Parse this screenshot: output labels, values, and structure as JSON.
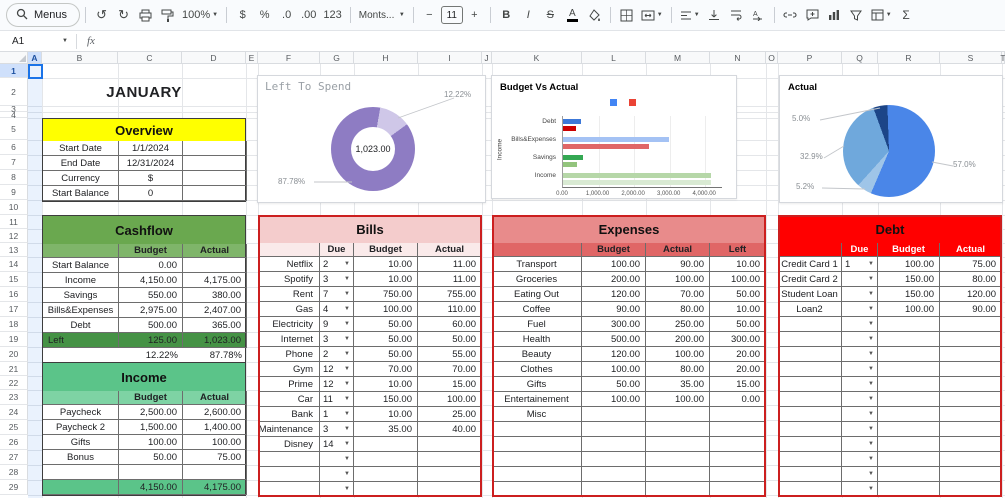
{
  "toolbar": {
    "menus": "Menus",
    "zoom": "100%",
    "currency": "$",
    "percent": "%",
    "decrease_decimal": ".0",
    "increase_decimal": ".00",
    "number_format": "123",
    "font": "Monts...",
    "font_size": "11",
    "minus": "−",
    "plus": "+",
    "bold": "B",
    "italic": "I",
    "strikethrough": "S",
    "text_color": "A",
    "functions": "Σ"
  },
  "formula_bar": {
    "name_box": "A1",
    "fx": "fx"
  },
  "grid": {
    "columns": [
      "A",
      "B",
      "C",
      "D",
      "E",
      "F",
      "G",
      "H",
      "I",
      "J",
      "K",
      "L",
      "M",
      "N",
      "O",
      "P",
      "Q",
      "R",
      "S",
      "T"
    ],
    "rows": [
      "1",
      "2",
      "3",
      "4",
      "5",
      "6",
      "7",
      "8",
      "9",
      "10",
      "11",
      "12",
      "13",
      "14",
      "15",
      "16",
      "17",
      "18",
      "19",
      "20",
      "21",
      "22",
      "23",
      "24",
      "25",
      "26",
      "27",
      "28",
      "29"
    ]
  },
  "colors": {
    "accent_blue": "#1a73e8",
    "overview_yellow": "#ffff00",
    "cashflow_green": "#6aa84f",
    "cashflow_left_green": "#459245",
    "income_green": "#5bc489",
    "bills_pink": "#f4cccc",
    "expenses_red": "#e88b8b",
    "debt_red": "#ff0000",
    "donut_purple": "#8e7cc3"
  },
  "month": {
    "title": "JANUARY"
  },
  "overview": {
    "title": "Overview",
    "rows": [
      {
        "label": "Start Date",
        "value": "1/1/2024",
        "blank": ""
      },
      {
        "label": "End Date",
        "value": "12/31/2024",
        "blank": ""
      },
      {
        "label": "Currency",
        "value": "$",
        "blank": ""
      },
      {
        "label": "Start Balance",
        "value": "0",
        "blank": ""
      }
    ]
  },
  "cashflow": {
    "title": "Cashflow",
    "headers": {
      "budget": "Budget",
      "actual": "Actual"
    },
    "rows": [
      {
        "label": "Start Balance",
        "budget": "0.00",
        "actual": ""
      },
      {
        "label": "Income",
        "budget": "4,150.00",
        "actual": "4,175.00"
      },
      {
        "label": "Savings",
        "budget": "550.00",
        "actual": "380.00"
      },
      {
        "label": "Bills&Expenses",
        "budget": "2,975.00",
        "actual": "2,407.00"
      },
      {
        "label": "Debt",
        "budget": "500.00",
        "actual": "365.00"
      }
    ],
    "left_row": {
      "label": "Left",
      "budget": "125.00",
      "actual": "1,023.00"
    },
    "pct_row": {
      "budget": "12.22%",
      "actual": "87.78%"
    }
  },
  "income": {
    "title": "Income",
    "headers": {
      "budget": "Budget",
      "actual": "Actual"
    },
    "rows": [
      {
        "label": "Paycheck",
        "budget": "2,500.00",
        "actual": "2,600.00"
      },
      {
        "label": "Paycheck 2",
        "budget": "1,500.00",
        "actual": "1,400.00"
      },
      {
        "label": "Gifts",
        "budget": "100.00",
        "actual": "100.00"
      },
      {
        "label": "Bonus",
        "budget": "50.00",
        "actual": "75.00"
      },
      {
        "label": "",
        "budget": "",
        "actual": ""
      }
    ],
    "total_row": {
      "budget": "4,150.00",
      "actual": "4,175.00"
    }
  },
  "bills": {
    "title": "Bills",
    "headers": {
      "due": "Due",
      "budget": "Budget",
      "actual": "Actual"
    },
    "rows": [
      {
        "name": "Netflix",
        "due": "2",
        "dd": true,
        "budget": "10.00",
        "actual": "11.00"
      },
      {
        "name": "Spotify",
        "due": "3",
        "dd": true,
        "budget": "10.00",
        "actual": "11.00"
      },
      {
        "name": "Rent",
        "due": "7",
        "dd": true,
        "budget": "750.00",
        "actual": "755.00"
      },
      {
        "name": "Gas",
        "due": "4",
        "dd": true,
        "budget": "100.00",
        "actual": "110.00"
      },
      {
        "name": "Electricity",
        "due": "9",
        "dd": true,
        "budget": "50.00",
        "actual": "60.00"
      },
      {
        "name": "Internet",
        "due": "3",
        "dd": true,
        "budget": "50.00",
        "actual": "50.00"
      },
      {
        "name": "Phone",
        "due": "2",
        "dd": true,
        "budget": "50.00",
        "actual": "55.00"
      },
      {
        "name": "Gym",
        "due": "12",
        "dd": true,
        "budget": "70.00",
        "actual": "70.00"
      },
      {
        "name": "Prime",
        "due": "12",
        "dd": true,
        "budget": "10.00",
        "actual": "15.00"
      },
      {
        "name": "Car",
        "due": "11",
        "dd": true,
        "budget": "150.00",
        "actual": "100.00"
      },
      {
        "name": "Bank",
        "due": "1",
        "dd": true,
        "budget": "10.00",
        "actual": "25.00"
      },
      {
        "name": "Maintenance",
        "due": "3",
        "dd": true,
        "budget": "35.00",
        "actual": "40.00"
      },
      {
        "name": "Disney",
        "due": "14",
        "dd": true,
        "budget": "",
        "actual": ""
      },
      {
        "name": "",
        "due": "",
        "dd": true,
        "budget": "",
        "actual": ""
      },
      {
        "name": "",
        "due": "",
        "dd": true,
        "budget": "",
        "actual": ""
      },
      {
        "name": "",
        "due": "",
        "dd": true,
        "budget": "",
        "actual": ""
      }
    ]
  },
  "expenses": {
    "title": "Expenses",
    "headers": {
      "budget": "Budget",
      "actual": "Actual",
      "left": "Left"
    },
    "rows": [
      {
        "name": "Transport",
        "budget": "100.00",
        "actual": "90.00",
        "left": "10.00"
      },
      {
        "name": "Groceries",
        "budget": "200.00",
        "actual": "100.00",
        "left": "100.00"
      },
      {
        "name": "Eating Out",
        "budget": "120.00",
        "actual": "70.00",
        "left": "50.00"
      },
      {
        "name": "Coffee",
        "budget": "90.00",
        "actual": "80.00",
        "left": "10.00"
      },
      {
        "name": "Fuel",
        "budget": "300.00",
        "actual": "250.00",
        "left": "50.00"
      },
      {
        "name": "Health",
        "budget": "500.00",
        "actual": "200.00",
        "left": "300.00"
      },
      {
        "name": "Beauty",
        "budget": "120.00",
        "actual": "100.00",
        "left": "20.00"
      },
      {
        "name": "Clothes",
        "budget": "100.00",
        "actual": "80.00",
        "left": "20.00"
      },
      {
        "name": "Gifts",
        "budget": "50.00",
        "actual": "35.00",
        "left": "15.00"
      },
      {
        "name": "Entertainement",
        "budget": "100.00",
        "actual": "100.00",
        "left": "0.00"
      },
      {
        "name": "Misc",
        "budget": "",
        "actual": "",
        "left": ""
      },
      {
        "name": "",
        "budget": "",
        "actual": "",
        "left": ""
      },
      {
        "name": "",
        "budget": "",
        "actual": "",
        "left": ""
      },
      {
        "name": "",
        "budget": "",
        "actual": "",
        "left": ""
      },
      {
        "name": "",
        "budget": "",
        "actual": "",
        "left": ""
      },
      {
        "name": "",
        "budget": "",
        "actual": "",
        "left": ""
      }
    ]
  },
  "debt": {
    "title": "Debt",
    "headers": {
      "due": "Due",
      "budget": "Budget",
      "actual": "Actual"
    },
    "rows": [
      {
        "name": "Credit Card 1",
        "due": "1",
        "dd": true,
        "budget": "100.00",
        "actual": "75.00"
      },
      {
        "name": "Credit Card 2",
        "due": "",
        "dd": true,
        "budget": "150.00",
        "actual": "80.00"
      },
      {
        "name": "Student Loan",
        "due": "",
        "dd": true,
        "budget": "150.00",
        "actual": "120.00"
      },
      {
        "name": "Loan2",
        "due": "",
        "dd": true,
        "budget": "100.00",
        "actual": "90.00"
      },
      {
        "name": "",
        "due": "",
        "dd": true,
        "budget": "",
        "actual": ""
      },
      {
        "name": "",
        "due": "",
        "dd": true,
        "budget": "",
        "actual": ""
      },
      {
        "name": "",
        "due": "",
        "dd": true,
        "budget": "",
        "actual": ""
      },
      {
        "name": "",
        "due": "",
        "dd": true,
        "budget": "",
        "actual": ""
      },
      {
        "name": "",
        "due": "",
        "dd": true,
        "budget": "",
        "actual": ""
      },
      {
        "name": "",
        "due": "",
        "dd": true,
        "budget": "",
        "actual": ""
      },
      {
        "name": "",
        "due": "",
        "dd": true,
        "budget": "",
        "actual": ""
      },
      {
        "name": "",
        "due": "",
        "dd": true,
        "budget": "",
        "actual": ""
      },
      {
        "name": "",
        "due": "",
        "dd": true,
        "budget": "",
        "actual": ""
      },
      {
        "name": "",
        "due": "",
        "dd": true,
        "budget": "",
        "actual": ""
      },
      {
        "name": "",
        "due": "",
        "dd": true,
        "budget": "",
        "actual": ""
      },
      {
        "name": "",
        "due": "",
        "dd": true,
        "budget": "",
        "actual": ""
      }
    ]
  },
  "chart_data": [
    {
      "type": "pie",
      "subtype": "donut",
      "title": "Left To Spend",
      "center_label": "1,023.00",
      "slices": [
        {
          "label": "12.22%",
          "value": 12.22,
          "color": "#cfc7e8"
        },
        {
          "label": "87.78%",
          "value": 87.78,
          "color": "#8e7cc3"
        }
      ]
    },
    {
      "type": "bar",
      "orientation": "horizontal",
      "title": "Budget Vs Actual",
      "axis_title": "Income",
      "categories": [
        "Debt",
        "Bills&Expenses",
        "Savings",
        "Income"
      ],
      "series": [
        {
          "name": "Budget",
          "values": [
            500,
            2975,
            550,
            4150
          ],
          "colors": [
            "#3c78d8",
            "#a4c2f4",
            "#34a853",
            "#b6d7a8"
          ]
        },
        {
          "name": "Actual",
          "values": [
            365,
            2407,
            380,
            4175
          ],
          "colors": [
            "#cc0000",
            "#e06666",
            "#93c47d",
            "#d9ead3"
          ]
        }
      ],
      "xlim": [
        0,
        4500
      ],
      "x_ticks": [
        "0.00",
        "1,000.00",
        "2,000.00",
        "3,000.00",
        "4,000.00"
      ],
      "legend_colors": [
        "#4285f4",
        "#ea4335"
      ]
    },
    {
      "type": "pie",
      "title": "Actual",
      "slices": [
        {
          "label": "5.0%",
          "value": 5.0,
          "color": "#1c4587"
        },
        {
          "label": "57.0%",
          "value": 57.0,
          "color": "#4a86e8"
        },
        {
          "label": "5.2%",
          "value": 5.2,
          "color": "#9fc5e8"
        },
        {
          "label": "32.9%",
          "value": 32.9,
          "color": "#6fa8dc"
        }
      ]
    }
  ]
}
